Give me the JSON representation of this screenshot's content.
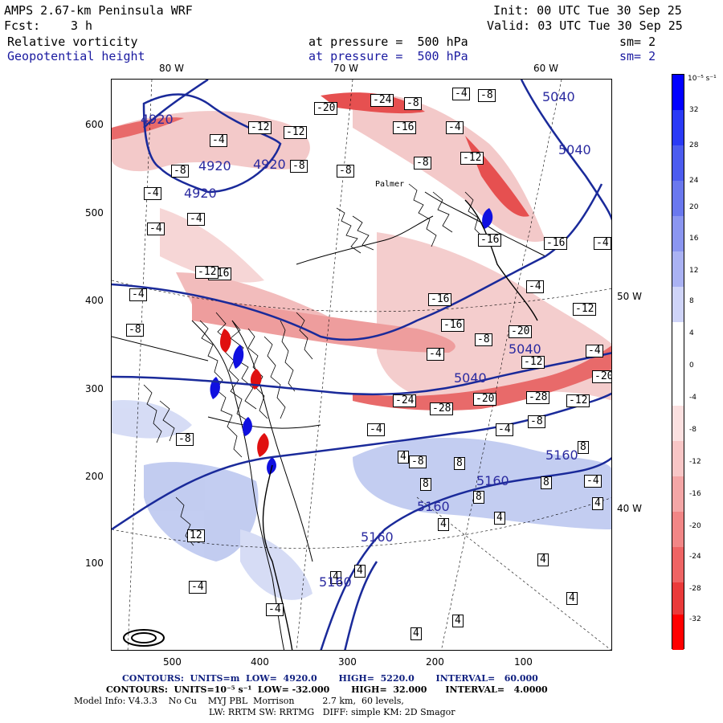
{
  "header": {
    "model_title": "AMPS 2.67-km Peninsula WRF",
    "init": "Init: 00 UTC Tue 30 Sep 25",
    "fcst_label": "Fcst:",
    "fcst_value": "3 h",
    "valid": "Valid: 03 UTC Tue 30 Sep 25",
    "field1": "Relative vorticity",
    "field1_level": "at pressure =  500 hPa",
    "field1_sm": "sm= 2",
    "field2": "Geopotential height",
    "field2_level": "at pressure =  500 hPa",
    "field2_sm": "sm= 2"
  },
  "lon_labels_top": [
    "80 W",
    "70 W",
    "60 W"
  ],
  "lat_labels_right": [
    "50 W",
    "40 W"
  ],
  "y_ticks": [
    "600",
    "500",
    "400",
    "300",
    "200",
    "100"
  ],
  "x_ticks": [
    "500",
    "400",
    "300",
    "200",
    "100"
  ],
  "colorbar": {
    "unit": "10⁻⁵ s⁻¹",
    "ticks": [
      "32",
      "28",
      "24",
      "20",
      "16",
      "12",
      "8",
      "4",
      "0",
      "-4",
      "-8",
      "-12",
      "-16",
      "-20",
      "-24",
      "-28",
      "-32"
    ]
  },
  "vort_labels": [
    "-20",
    "-24",
    "-8",
    "-4",
    "-8",
    "-12",
    "-12",
    "-16",
    "-4",
    "-12",
    "-8",
    "-4",
    "-4",
    "-8",
    "-8",
    "-16",
    "-16",
    "-4",
    "-4",
    "-4",
    "-16",
    "-16",
    "-12",
    "-16",
    "-20",
    "-8",
    "-4",
    "-4",
    "-12",
    "-20",
    "-24",
    "-28",
    "-12",
    "-28",
    "-20",
    "-8",
    "-4",
    "-4",
    "-8",
    "8",
    "8",
    "8",
    "8",
    "8",
    "4",
    "-4",
    "4",
    "4",
    "4",
    "4",
    "4",
    "4",
    "4",
    "4",
    "4",
    "12",
    "-4",
    "-4",
    "-8",
    "-12",
    "-8",
    "-8",
    "-4",
    "-4"
  ],
  "height_labels": [
    "4920",
    "4920",
    "4920",
    "4920",
    "5040",
    "5040",
    "5040",
    "5040",
    "5160",
    "5160",
    "5160",
    "5160",
    "5160"
  ],
  "footer": {
    "line1": "CONTOURS:  UNITS=m  LOW=  4920.0       HIGH=  5220.0       INTERVAL=   60.000",
    "line2": "CONTOURS:  UNITS=10⁻⁵ s⁻¹  LOW= -32.000       HIGH=  32.000      INTERVAL=   4.0000",
    "line3": "Model Info: V4.3.3    No Cu    MYJ PBL  Morrison          2.7 km,  60 levels,",
    "line4": "LW: RRTM SW: RRTMG   DIFF: simple KM: 2D Smagor"
  },
  "map_place_label": "Palmer"
}
